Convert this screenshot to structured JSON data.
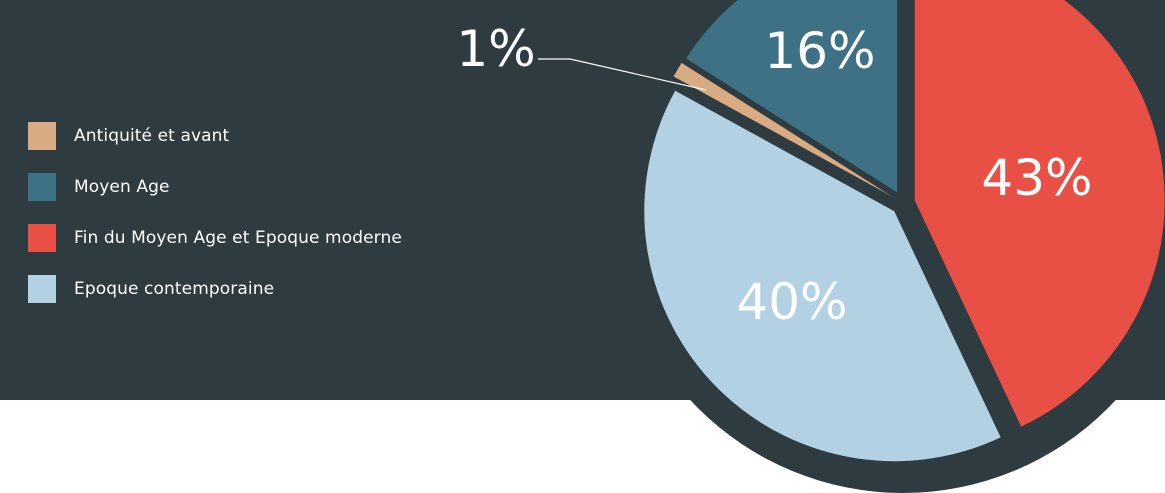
{
  "chart_data": {
    "type": "pie",
    "categories": [
      "Antiquité et avant",
      "Moyen Age",
      "Fin du Moyen Age et Epoque moderne",
      "Epoque contemporaine"
    ],
    "values": [
      1,
      16,
      43,
      40
    ],
    "labels": [
      "1%",
      "16%",
      "43%",
      "40%"
    ],
    "colors": [
      "#d9ab82",
      "#3e7185",
      "#e84f45",
      "#b2d1e3"
    ],
    "legend_position": "left"
  },
  "colors": {
    "background_dark": "#2e3b40",
    "background_light": "#ffffff",
    "text": "#ffffff"
  }
}
